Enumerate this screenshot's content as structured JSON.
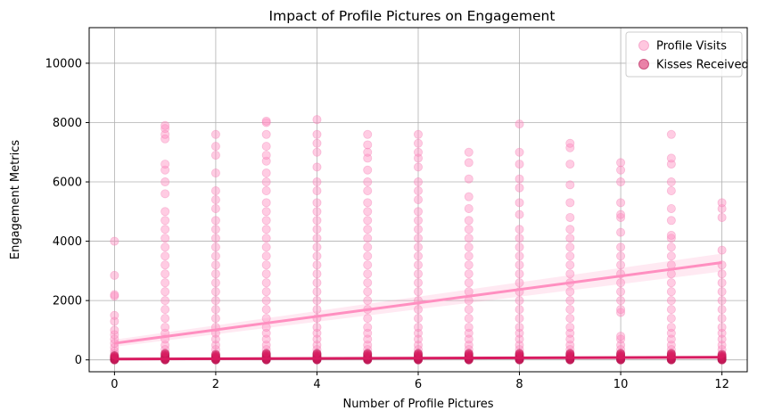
{
  "chart_data": {
    "type": "scatter",
    "title": "Impact of Profile Pictures on Engagement",
    "xlabel": "Number of Profile Pictures",
    "ylabel": "Engagement Metrics",
    "xlim": [
      -0.5,
      12.5
    ],
    "ylim": [
      -400,
      11200
    ],
    "xticks": [
      0,
      2,
      4,
      6,
      8,
      10,
      12
    ],
    "yticks": [
      0,
      2000,
      4000,
      6000,
      8000,
      10000
    ],
    "grid": true,
    "legend_position": "top-right",
    "series": [
      {
        "name": "Profile Visits",
        "color": "#ff8fc0",
        "trend": {
          "x": [
            0,
            12
          ],
          "y": [
            560,
            3280
          ]
        },
        "points": [
          {
            "x": 0,
            "y": [
              0,
              60,
              120,
              200,
              300,
              420,
              560,
              700,
              850,
              1000,
              1300,
              1500,
              2150,
              2200,
              2850,
              4000
            ]
          },
          {
            "x": 1,
            "y": [
              0,
              80,
              200,
              350,
              500,
              700,
              900,
              1100,
              1400,
              1700,
              2000,
              2300,
              2600,
              2900,
              3200,
              3500,
              3800,
              4100,
              4400,
              4700,
              5000,
              5600,
              6000,
              6400,
              6600,
              7450,
              7600,
              7800,
              7900
            ]
          },
          {
            "x": 2,
            "y": [
              0,
              80,
              200,
              350,
              500,
              700,
              900,
              1100,
              1400,
              1700,
              2000,
              2300,
              2600,
              2900,
              3200,
              3500,
              3800,
              4100,
              4400,
              4700,
              5100,
              5400,
              5700,
              6300,
              6900,
              7200,
              7600
            ]
          },
          {
            "x": 3,
            "y": [
              0,
              80,
              200,
              350,
              500,
              700,
              900,
              1100,
              1400,
              1700,
              2000,
              2300,
              2600,
              2900,
              3200,
              3500,
              3800,
              4100,
              4400,
              4700,
              5000,
              5300,
              5700,
              6000,
              6300,
              6700,
              6900,
              7200,
              7600,
              8000,
              8050
            ]
          },
          {
            "x": 4,
            "y": [
              0,
              80,
              200,
              350,
              500,
              700,
              900,
              1100,
              1400,
              1700,
              2000,
              2300,
              2600,
              2900,
              3200,
              3500,
              3800,
              4100,
              4400,
              4700,
              5000,
              5300,
              5700,
              6000,
              6500,
              7000,
              7300,
              7600,
              8100
            ]
          },
          {
            "x": 5,
            "y": [
              0,
              80,
              200,
              350,
              500,
              700,
              900,
              1100,
              1400,
              1700,
              2000,
              2300,
              2600,
              2900,
              3200,
              3500,
              3800,
              4100,
              4400,
              4700,
              5000,
              5300,
              5700,
              6000,
              6400,
              6800,
              7000,
              7250,
              7600
            ]
          },
          {
            "x": 6,
            "y": [
              0,
              80,
              200,
              350,
              500,
              700,
              900,
              1100,
              1400,
              1700,
              2000,
              2300,
              2600,
              2900,
              3200,
              3500,
              3800,
              4100,
              4400,
              4700,
              5000,
              5400,
              5700,
              6000,
              6500,
              6800,
              7000,
              7300,
              7600
            ]
          },
          {
            "x": 7,
            "y": [
              0,
              80,
              200,
              350,
              500,
              700,
              900,
              1100,
              1400,
              1700,
              2000,
              2300,
              2600,
              2900,
              3200,
              3500,
              3800,
              4100,
              4400,
              4700,
              5100,
              5500,
              6100,
              6650,
              7000
            ]
          },
          {
            "x": 8,
            "y": [
              0,
              80,
              200,
              350,
              500,
              700,
              900,
              1100,
              1400,
              1700,
              2000,
              2300,
              2600,
              2900,
              3200,
              3500,
              3800,
              4100,
              4400,
              4900,
              5300,
              5800,
              6100,
              6600,
              7000,
              7950
            ]
          },
          {
            "x": 9,
            "y": [
              0,
              80,
              200,
              350,
              500,
              700,
              900,
              1100,
              1400,
              1700,
              2000,
              2300,
              2600,
              2900,
              3200,
              3500,
              3800,
              4100,
              4400,
              4800,
              5300,
              5900,
              6600,
              7150,
              7300
            ]
          },
          {
            "x": 10,
            "y": [
              0,
              80,
              200,
              350,
              500,
              700,
              800,
              1600,
              1700,
              2000,
              2300,
              2600,
              2900,
              3200,
              3500,
              3800,
              4300,
              4800,
              4900,
              5300,
              6000,
              6400,
              6650
            ]
          },
          {
            "x": 11,
            "y": [
              0,
              80,
              200,
              350,
              500,
              700,
              900,
              1100,
              1400,
              1700,
              2000,
              2300,
              2600,
              2900,
              3200,
              3500,
              3800,
              4100,
              4200,
              4700,
              5100,
              5700,
              6000,
              6600,
              6800,
              7600
            ]
          },
          {
            "x": 12,
            "y": [
              0,
              80,
              200,
              350,
              500,
              700,
              900,
              1100,
              1400,
              1700,
              2000,
              2300,
              2600,
              2900,
              3200,
              3700,
              4800,
              5100,
              5300
            ]
          }
        ]
      },
      {
        "name": "Kisses Received",
        "color": "#d81b60",
        "trend": {
          "x": [
            0,
            12
          ],
          "y": [
            30,
            90
          ]
        },
        "points": [
          {
            "x": 0,
            "y": [
              0,
              10,
              25,
              40,
              60,
              80,
              110,
              140
            ]
          },
          {
            "x": 1,
            "y": [
              0,
              10,
              25,
              40,
              60,
              80,
              110,
              140,
              180,
              220
            ]
          },
          {
            "x": 2,
            "y": [
              0,
              10,
              25,
              40,
              60,
              80,
              110,
              140,
              180
            ]
          },
          {
            "x": 3,
            "y": [
              0,
              10,
              25,
              40,
              60,
              80,
              110,
              140,
              180,
              220
            ]
          },
          {
            "x": 4,
            "y": [
              0,
              10,
              25,
              40,
              60,
              80,
              110,
              140,
              180,
              220
            ]
          },
          {
            "x": 5,
            "y": [
              0,
              10,
              25,
              40,
              60,
              80,
              110,
              140,
              180,
              220
            ]
          },
          {
            "x": 6,
            "y": [
              0,
              10,
              25,
              40,
              60,
              80,
              110,
              140,
              180,
              220
            ]
          },
          {
            "x": 7,
            "y": [
              0,
              10,
              25,
              40,
              60,
              80,
              110,
              140,
              180,
              220
            ]
          },
          {
            "x": 8,
            "y": [
              0,
              10,
              25,
              40,
              60,
              80,
              110,
              140,
              180,
              220
            ]
          },
          {
            "x": 9,
            "y": [
              0,
              10,
              25,
              40,
              60,
              80,
              110,
              140,
              180,
              220
            ]
          },
          {
            "x": 10,
            "y": [
              0,
              10,
              25,
              40,
              60,
              80,
              110,
              140,
              180,
              220
            ]
          },
          {
            "x": 11,
            "y": [
              0,
              10,
              25,
              40,
              60,
              80,
              110,
              140,
              180,
              220
            ]
          },
          {
            "x": 12,
            "y": [
              0,
              10,
              25,
              40,
              60,
              80,
              110,
              140,
              180
            ]
          }
        ]
      }
    ]
  }
}
